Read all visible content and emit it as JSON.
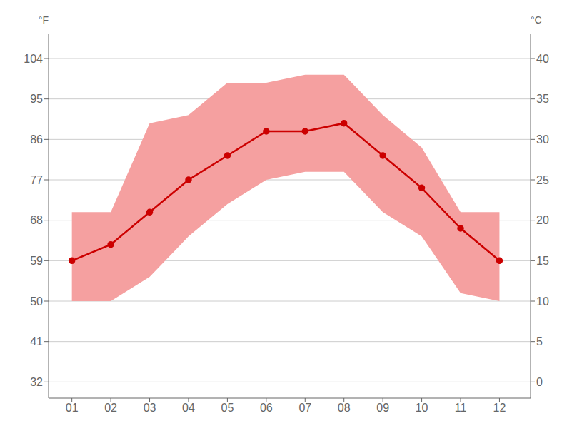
{
  "chart_data": {
    "type": "line",
    "x": [
      1,
      2,
      3,
      4,
      5,
      6,
      7,
      8,
      9,
      10,
      11,
      12
    ],
    "xlim": [
      0.4,
      12.8
    ],
    "xticks": [
      {
        "value": 1,
        "label": "01"
      },
      {
        "value": 2,
        "label": "02"
      },
      {
        "value": 3,
        "label": "03"
      },
      {
        "value": 4,
        "label": "04"
      },
      {
        "value": 5,
        "label": "05"
      },
      {
        "value": 6,
        "label": "06"
      },
      {
        "value": 7,
        "label": "07"
      },
      {
        "value": 8,
        "label": "08"
      },
      {
        "value": 9,
        "label": "09"
      },
      {
        "value": 10,
        "label": "10"
      },
      {
        "value": 11,
        "label": "11"
      },
      {
        "value": 12,
        "label": "12"
      }
    ],
    "ylim": [
      -2,
      43
    ],
    "yticks": [
      0,
      5,
      10,
      15,
      20,
      25,
      30,
      35,
      40
    ],
    "y2lim": [
      28.4,
      109.4
    ],
    "y2ticks": [
      32,
      41,
      50,
      59,
      68,
      77,
      86,
      95,
      104
    ],
    "grid": true,
    "annotations": [
      "°F",
      "°C"
    ],
    "series": [
      {
        "type": "area",
        "color": "#f5a0a0",
        "lower": [
          10,
          10,
          13,
          18,
          22,
          25,
          26,
          26,
          21,
          18,
          11,
          10
        ],
        "upper": [
          21,
          21,
          32,
          33,
          37,
          37,
          38,
          38,
          33,
          29,
          21,
          21
        ]
      },
      {
        "type": "line",
        "color": "#cc0000",
        "marker": "circle",
        "values": [
          15,
          17,
          21,
          25,
          28,
          31,
          31,
          32,
          28,
          24,
          19,
          15
        ]
      }
    ]
  }
}
